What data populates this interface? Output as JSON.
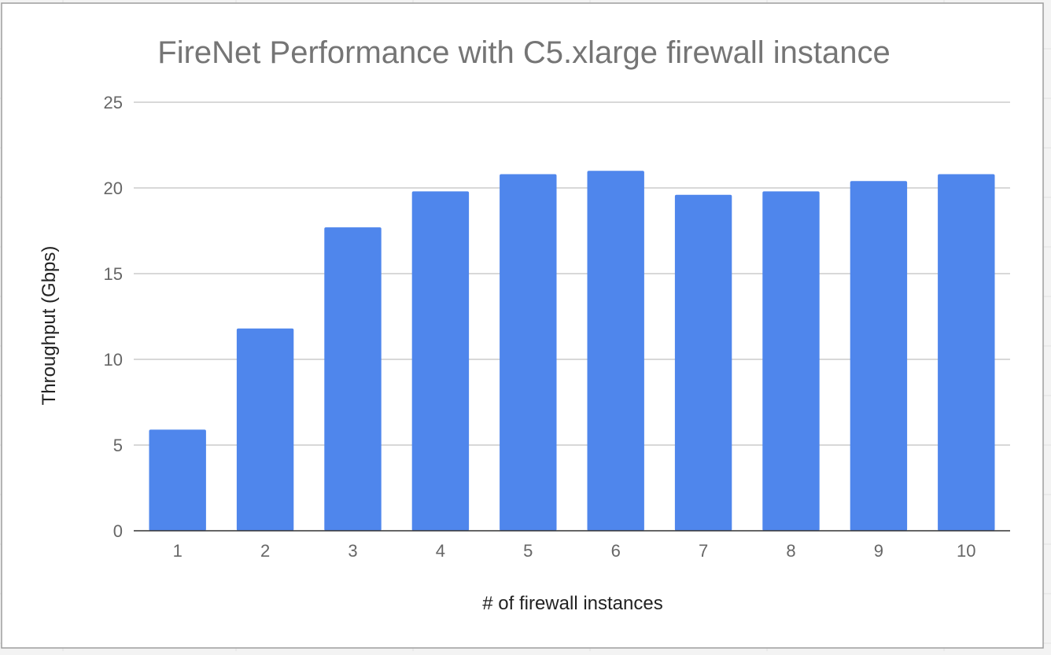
{
  "chart_data": {
    "type": "bar",
    "title": "FireNet Performance with C5.xlarge firewall instance",
    "xlabel": "# of firewall instances",
    "ylabel": "Throughput (Gbps)",
    "categories": [
      "1",
      "2",
      "3",
      "4",
      "5",
      "6",
      "7",
      "8",
      "9",
      "10"
    ],
    "values": [
      5.9,
      11.8,
      17.7,
      19.8,
      20.8,
      21.0,
      19.6,
      19.8,
      20.4,
      20.8
    ],
    "ylim": [
      0,
      25
    ],
    "yticks": [
      0,
      5,
      10,
      15,
      20,
      25
    ],
    "grid": true,
    "legend": "none",
    "colors": {
      "bar": "#4f86ec",
      "grid": "#cccccc",
      "axis": "#333333",
      "text": "#666666",
      "title": "#757575"
    }
  }
}
